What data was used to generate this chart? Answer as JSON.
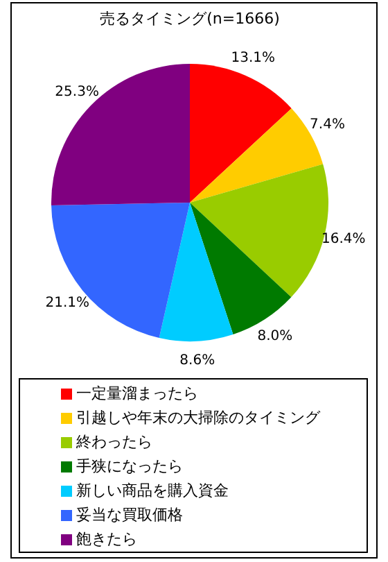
{
  "chart_data": {
    "type": "pie",
    "title": "売るタイミング(n=1666)",
    "categories": [
      "一定量溜まったら",
      "引越しや年末の大掃除のタイミング",
      "終わったら",
      "手狭になったら",
      "新しい商品を購入資金",
      "妥当な買取価格",
      "飽きたら"
    ],
    "values": [
      13.1,
      7.4,
      16.4,
      8.0,
      8.6,
      21.1,
      25.3
    ],
    "colors": [
      "#ff0000",
      "#ffcc00",
      "#99cc00",
      "#007a00",
      "#00ccff",
      "#3366ff",
      "#800080"
    ],
    "value_labels": [
      "13.1%",
      "7.4%",
      "16.4%",
      "8.0%",
      "8.6%",
      "21.1%",
      "25.3%"
    ],
    "legend": "bottom"
  }
}
